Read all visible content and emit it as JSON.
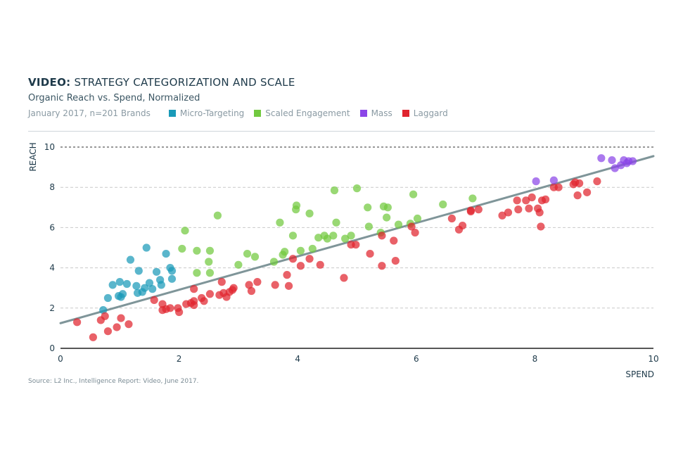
{
  "header": {
    "title_bold": "VIDEO:",
    "title_rest": " STRATEGY CATEGORIZATION AND SCALE",
    "subtitle": "Organic Reach vs. Spend, Normalized",
    "note": "January 2017, n=201 Brands"
  },
  "source": "Source: L2 Inc., Intelligence Report: Video, June 2017.",
  "chart_data": {
    "type": "scatter",
    "title": "VIDEO: STRATEGY CATEGORIZATION AND SCALE",
    "subtitle": "Organic Reach vs. Spend, Normalized",
    "xlabel": "SPEND",
    "ylabel": "REACH",
    "xlim": [
      0,
      10
    ],
    "ylim": [
      0,
      10
    ],
    "x_ticks": [
      "0",
      "2",
      "4",
      "6",
      "8",
      "10"
    ],
    "y_ticks": [
      "0",
      "2",
      "4",
      "6",
      "8",
      "10"
    ],
    "grid": "horizontal dashed",
    "legend_position": "top",
    "trendline": {
      "x": [
        0,
        10
      ],
      "y": [
        1.25,
        9.55
      ],
      "color": "#7f9599"
    },
    "series": [
      {
        "name": "Micro-Targeting",
        "color": "#1a9ab8",
        "points": [
          [
            0.72,
            1.9
          ],
          [
            0.8,
            2.5
          ],
          [
            0.88,
            3.15
          ],
          [
            0.98,
            2.6
          ],
          [
            1.0,
            3.3
          ],
          [
            1.02,
            2.55
          ],
          [
            1.05,
            2.7
          ],
          [
            1.12,
            3.2
          ],
          [
            1.18,
            4.4
          ],
          [
            1.28,
            3.1
          ],
          [
            1.3,
            2.75
          ],
          [
            1.32,
            3.85
          ],
          [
            1.38,
            2.8
          ],
          [
            1.42,
            3.0
          ],
          [
            1.45,
            5.0
          ],
          [
            1.5,
            3.25
          ],
          [
            1.55,
            2.95
          ],
          [
            1.62,
            3.8
          ],
          [
            1.68,
            3.4
          ],
          [
            1.7,
            3.15
          ],
          [
            1.78,
            4.7
          ],
          [
            1.85,
            4.0
          ],
          [
            1.88,
            3.85
          ],
          [
            1.88,
            3.45
          ]
        ]
      },
      {
        "name": "Scaled Engagement",
        "color": "#72c93f",
        "points": [
          [
            2.05,
            4.95
          ],
          [
            2.1,
            5.85
          ],
          [
            2.3,
            4.85
          ],
          [
            2.3,
            3.75
          ],
          [
            2.5,
            4.3
          ],
          [
            2.52,
            3.75
          ],
          [
            2.52,
            4.85
          ],
          [
            2.65,
            6.6
          ],
          [
            3.0,
            4.15
          ],
          [
            3.15,
            4.7
          ],
          [
            3.28,
            4.55
          ],
          [
            3.6,
            4.3
          ],
          [
            3.7,
            6.25
          ],
          [
            3.75,
            4.65
          ],
          [
            3.78,
            4.8
          ],
          [
            3.92,
            5.6
          ],
          [
            3.97,
            6.9
          ],
          [
            3.98,
            7.1
          ],
          [
            4.05,
            4.85
          ],
          [
            4.2,
            6.7
          ],
          [
            4.25,
            4.95
          ],
          [
            4.35,
            5.5
          ],
          [
            4.45,
            5.6
          ],
          [
            4.5,
            5.45
          ],
          [
            4.6,
            5.6
          ],
          [
            4.62,
            7.85
          ],
          [
            4.65,
            6.25
          ],
          [
            4.8,
            5.45
          ],
          [
            4.9,
            5.6
          ],
          [
            5.0,
            7.95
          ],
          [
            5.18,
            7.0
          ],
          [
            5.2,
            6.05
          ],
          [
            5.4,
            5.75
          ],
          [
            5.45,
            7.05
          ],
          [
            5.5,
            6.5
          ],
          [
            5.52,
            7.0
          ],
          [
            5.7,
            6.15
          ],
          [
            5.9,
            6.2
          ],
          [
            5.95,
            7.65
          ],
          [
            6.02,
            6.45
          ],
          [
            6.45,
            7.15
          ],
          [
            6.95,
            7.45
          ]
        ]
      },
      {
        "name": "Mass",
        "color": "#8b45e8",
        "points": [
          [
            8.02,
            8.3
          ],
          [
            8.32,
            8.35
          ],
          [
            9.12,
            9.45
          ],
          [
            9.3,
            9.35
          ],
          [
            9.35,
            8.95
          ],
          [
            9.45,
            9.1
          ],
          [
            9.5,
            9.35
          ],
          [
            9.55,
            9.2
          ],
          [
            9.58,
            9.3
          ],
          [
            9.65,
            9.3
          ]
        ]
      },
      {
        "name": "Laggard",
        "color": "#e0242e",
        "points": [
          [
            0.28,
            1.3
          ],
          [
            0.55,
            0.55
          ],
          [
            0.68,
            1.4
          ],
          [
            0.75,
            1.6
          ],
          [
            0.8,
            0.85
          ],
          [
            0.95,
            1.05
          ],
          [
            1.02,
            1.5
          ],
          [
            1.15,
            1.2
          ],
          [
            1.58,
            2.4
          ],
          [
            1.72,
            2.2
          ],
          [
            1.72,
            1.9
          ],
          [
            1.78,
            1.95
          ],
          [
            1.85,
            2.0
          ],
          [
            1.98,
            2.0
          ],
          [
            2.0,
            1.8
          ],
          [
            2.12,
            2.2
          ],
          [
            2.2,
            2.25
          ],
          [
            2.25,
            2.95
          ],
          [
            2.25,
            2.15
          ],
          [
            2.25,
            2.35
          ],
          [
            2.38,
            2.5
          ],
          [
            2.42,
            2.35
          ],
          [
            2.52,
            2.7
          ],
          [
            2.68,
            2.65
          ],
          [
            2.72,
            3.3
          ],
          [
            2.75,
            2.75
          ],
          [
            2.8,
            2.55
          ],
          [
            2.85,
            2.8
          ],
          [
            2.9,
            2.9
          ],
          [
            2.92,
            3.0
          ],
          [
            3.18,
            3.15
          ],
          [
            3.22,
            2.85
          ],
          [
            3.32,
            3.3
          ],
          [
            3.62,
            3.15
          ],
          [
            3.82,
            3.65
          ],
          [
            3.85,
            3.1
          ],
          [
            3.92,
            4.45
          ],
          [
            4.05,
            4.1
          ],
          [
            4.2,
            4.45
          ],
          [
            4.38,
            4.15
          ],
          [
            4.78,
            3.5
          ],
          [
            4.9,
            5.15
          ],
          [
            4.98,
            5.15
          ],
          [
            5.22,
            4.7
          ],
          [
            5.42,
            5.6
          ],
          [
            5.42,
            4.1
          ],
          [
            5.62,
            5.35
          ],
          [
            5.65,
            4.35
          ],
          [
            5.92,
            6.05
          ],
          [
            5.98,
            5.75
          ],
          [
            6.6,
            6.45
          ],
          [
            6.72,
            5.9
          ],
          [
            6.78,
            6.1
          ],
          [
            6.92,
            6.8
          ],
          [
            6.92,
            6.85
          ],
          [
            7.05,
            6.9
          ],
          [
            7.45,
            6.6
          ],
          [
            7.55,
            6.75
          ],
          [
            7.7,
            7.35
          ],
          [
            7.72,
            6.9
          ],
          [
            7.85,
            7.35
          ],
          [
            7.9,
            6.95
          ],
          [
            7.95,
            7.5
          ],
          [
            8.05,
            6.95
          ],
          [
            8.08,
            6.75
          ],
          [
            8.1,
            6.05
          ],
          [
            8.12,
            7.35
          ],
          [
            8.18,
            7.4
          ],
          [
            8.32,
            8.0
          ],
          [
            8.4,
            8.0
          ],
          [
            8.65,
            8.15
          ],
          [
            8.68,
            8.25
          ],
          [
            8.72,
            7.6
          ],
          [
            8.75,
            8.2
          ],
          [
            8.88,
            7.75
          ],
          [
            9.05,
            8.3
          ]
        ]
      }
    ]
  }
}
